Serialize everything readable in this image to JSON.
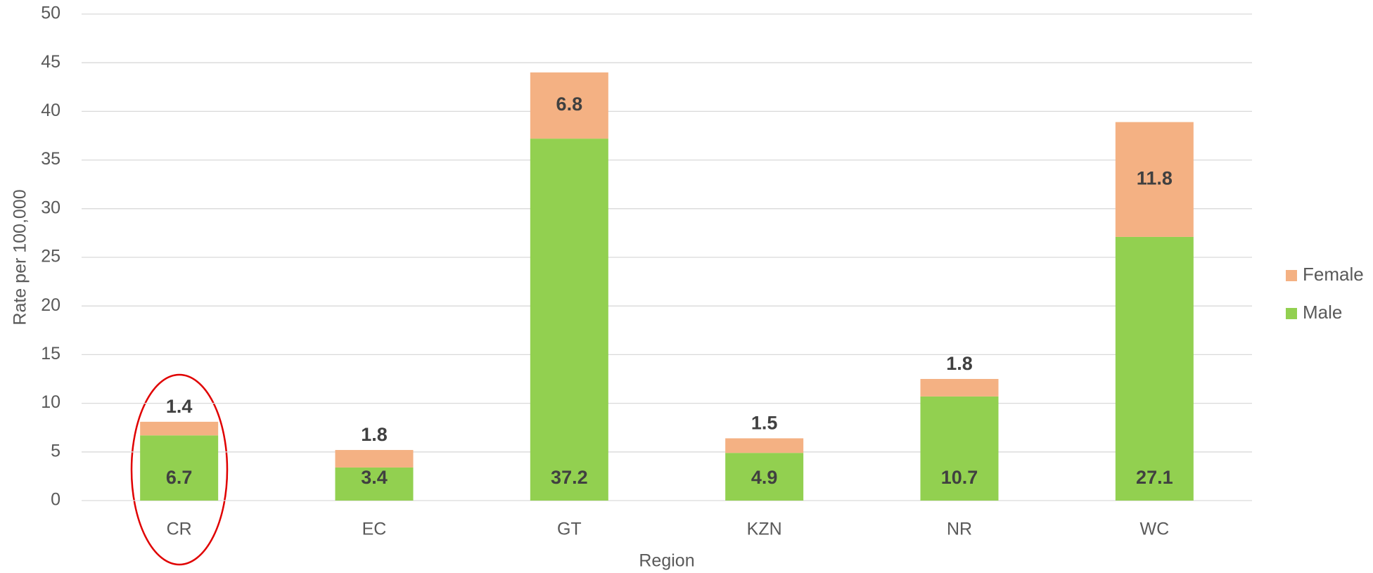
{
  "chart_data": {
    "type": "stacked_bar",
    "x_label": "Region",
    "y_label": "Rate per 100,000",
    "categories": [
      "CR",
      "EC",
      "GT",
      "KZN",
      "NR",
      "WC"
    ],
    "series": [
      {
        "name": "Male",
        "color": "#92d050",
        "values": [
          6.7,
          3.4,
          37.2,
          4.9,
          10.7,
          27.1
        ]
      },
      {
        "name": "Female",
        "color": "#f4b183",
        "values": [
          1.4,
          1.8,
          6.8,
          1.5,
          1.8,
          11.8
        ]
      }
    ],
    "ylim": [
      0,
      50
    ],
    "yticks": [
      0,
      5,
      10,
      15,
      20,
      25,
      30,
      35,
      40,
      45,
      50
    ],
    "grid": true,
    "legend": "right"
  }
}
